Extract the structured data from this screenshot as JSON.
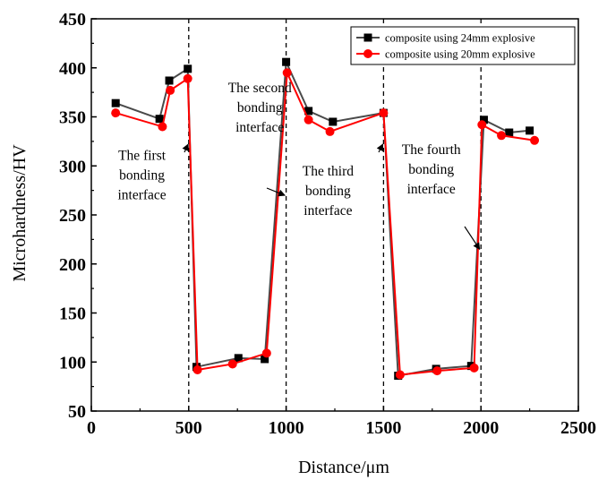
{
  "chart_data": {
    "type": "line",
    "xlabel": "Distance/μm",
    "ylabel": "Microhardness/HV",
    "xlim": [
      0,
      2500
    ],
    "ylim": [
      50,
      450
    ],
    "xticks": [
      0,
      500,
      1000,
      1500,
      2000,
      2500
    ],
    "yticks": [
      50,
      100,
      150,
      200,
      250,
      300,
      350,
      400,
      450
    ],
    "grid": false,
    "legend_position": "top-right",
    "series": [
      {
        "name": "composite using 24mm explosive",
        "color": "#000000",
        "marker": "square",
        "x": [
          125,
          350,
          400,
          495,
          540,
          755,
          890,
          1000,
          1115,
          1240,
          1500,
          1575,
          1770,
          1950,
          2015,
          2145,
          2250
        ],
        "y": [
          364,
          348,
          387,
          399,
          95,
          104,
          103,
          406,
          356,
          345,
          354,
          86,
          93,
          96,
          347,
          334,
          336
        ]
      },
      {
        "name": "composite using 20mm explosive",
        "color": "#ff0000",
        "marker": "circle",
        "x": [
          125,
          365,
          405,
          495,
          545,
          725,
          900,
          1005,
          1115,
          1225,
          1500,
          1585,
          1775,
          1965,
          2005,
          2105,
          2275
        ],
        "y": [
          354,
          340,
          377,
          389,
          92,
          98,
          109,
          395,
          347,
          335,
          354,
          87,
          91,
          94,
          342,
          331,
          326
        ]
      }
    ],
    "vlines": [
      500,
      1000,
      1500,
      2000
    ],
    "annotations": [
      {
        "lines": [
          "The first",
          "bonding",
          "interface"
        ],
        "text_x": 260,
        "text_y": 306,
        "arrow_to": [
          497,
          322
        ]
      },
      {
        "lines": [
          "The second",
          "bonding",
          "interface"
        ],
        "text_x": 865,
        "text_y": 375,
        "arrow_to": [
          993,
          270
        ]
      },
      {
        "lines": [
          "The third",
          "bonding",
          "interface"
        ],
        "text_x": 1215,
        "text_y": 290,
        "arrow_to": [
          1496,
          322
        ]
      },
      {
        "lines": [
          "The fourth",
          "bonding",
          "interface"
        ],
        "text_x": 1745,
        "text_y": 312,
        "arrow_to": [
          1993,
          215
        ]
      }
    ]
  }
}
